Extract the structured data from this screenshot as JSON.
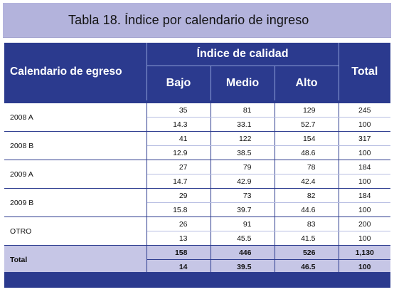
{
  "title": "Tabla 18. Índice por calendario de ingreso",
  "header": {
    "row_label": "Calendario de egreso",
    "group": "Índice de calidad",
    "columns": [
      "Bajo",
      "Medio",
      "Alto"
    ],
    "total": "Total"
  },
  "rows": [
    {
      "label": "2008 A",
      "counts": [
        "35",
        "81",
        "129",
        "245"
      ],
      "percents": [
        "14.3",
        "33.1",
        "52.7",
        "100"
      ]
    },
    {
      "label": "2008 B",
      "counts": [
        "41",
        "122",
        "154",
        "317"
      ],
      "percents": [
        "12.9",
        "38.5",
        "48.6",
        "100"
      ]
    },
    {
      "label": "2009 A",
      "counts": [
        "27",
        "79",
        "78",
        "184"
      ],
      "percents": [
        "14.7",
        "42.9",
        "42.4",
        "100"
      ]
    },
    {
      "label": "2009 B",
      "counts": [
        "29",
        "73",
        "82",
        "184"
      ],
      "percents": [
        "15.8",
        "39.7",
        "44.6",
        "100"
      ]
    },
    {
      "label": "OTRO",
      "counts": [
        "26",
        "91",
        "83",
        "200"
      ],
      "percents": [
        "13",
        "45.5",
        "41.5",
        "100"
      ]
    }
  ],
  "total_row": {
    "label": "Total",
    "counts": [
      "158",
      "446",
      "526",
      "1,130"
    ],
    "percents": [
      "14",
      "39.5",
      "46.5",
      "100"
    ]
  },
  "colors": {
    "header": "#2b3a8e",
    "title_bar": "#b3b3dc",
    "total_row": "#c6c6e6"
  }
}
